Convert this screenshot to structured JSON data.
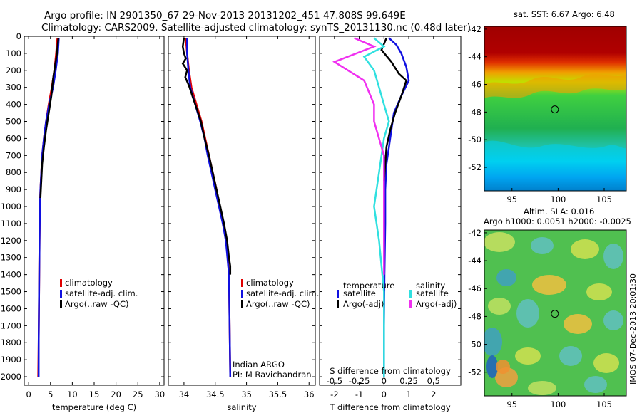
{
  "header": {
    "title_line1": "Argo profile: IN 2901350_67 29-Nov-2013 20131202_451 47.808S 99.649E",
    "title_line2": "Climatology: CARS2009. Satellite-adjusted climatology: synTS_20131130.nc (0.48d later)"
  },
  "side_note": "IMOS 07-Dec-2013 20:01:30",
  "colors": {
    "climatology": "#e00000",
    "satellite": "#1010e0",
    "argo": "#000000",
    "satellite_salinity": "#30e0e0",
    "argo_salinity_diff": "#f030f0"
  },
  "chart_data": [
    {
      "type": "line",
      "panel": "temperature",
      "xlabel": "temperature (deg C)",
      "ylabel": "",
      "xlim": [
        -1,
        31
      ],
      "ylim": [
        2050,
        0
      ],
      "xticks": [
        "0",
        "5",
        "10",
        "15",
        "20",
        "25",
        "30"
      ],
      "yticks": [
        "0",
        "100",
        "200",
        "300",
        "400",
        "500",
        "600",
        "700",
        "800",
        "900",
        "1000",
        "1100",
        "1200",
        "1300",
        "1400",
        "1500",
        "1600",
        "1700",
        "1800",
        "1900",
        "2000"
      ],
      "legend": [
        "climatology",
        "satellite-adj. clim.",
        "Argo(..raw -QC)"
      ],
      "series": [
        {
          "name": "climatology",
          "x": [
            6.6,
            6.3,
            5.9,
            5.3,
            4.6,
            4.0,
            3.5,
            3.1,
            2.9,
            2.7,
            2.6,
            2.5,
            2.4,
            2.3,
            2.2
          ],
          "y": [
            10,
            100,
            200,
            300,
            400,
            500,
            600,
            700,
            800,
            900,
            1000,
            1200,
            1500,
            1800,
            2000
          ]
        },
        {
          "name": "satellite-adj. clim.",
          "x": [
            6.9,
            6.7,
            6.2,
            5.6,
            4.7,
            4.0,
            3.5,
            3.1,
            2.9,
            2.7,
            2.6,
            2.5,
            2.4,
            2.3,
            2.3
          ],
          "y": [
            10,
            100,
            200,
            300,
            400,
            500,
            600,
            700,
            800,
            900,
            1000,
            1200,
            1500,
            1800,
            2000
          ]
        },
        {
          "name": "Argo(..raw -QC)",
          "x": [
            6.8,
            6.5,
            6.0,
            5.6,
            5.2,
            4.6,
            4.0,
            3.5,
            3.1,
            2.9,
            2.7
          ],
          "y": [
            10,
            100,
            180,
            250,
            350,
            450,
            550,
            650,
            750,
            850,
            950
          ]
        }
      ]
    },
    {
      "type": "line",
      "panel": "salinity",
      "xlabel": "salinity",
      "xlim": [
        33.75,
        36.1
      ],
      "ylim": [
        2050,
        0
      ],
      "xticks": [
        "34",
        "34.5",
        "35",
        "35.5",
        "36"
      ],
      "legend": [
        "climatology",
        "satellite-adj. clim.",
        "Argo(..raw -QC)"
      ],
      "annotation": [
        "Indian ARGO",
        "PI: M Ravichandran"
      ],
      "series": [
        {
          "name": "climatology",
          "x": [
            34.03,
            34.05,
            34.08,
            34.12,
            34.2,
            34.28,
            34.34,
            34.4,
            34.46,
            34.52,
            34.57,
            34.63,
            34.68,
            34.72,
            34.73,
            34.74
          ],
          "y": [
            10,
            100,
            200,
            300,
            400,
            500,
            600,
            700,
            800,
            900,
            1000,
            1100,
            1200,
            1400,
            1700,
            2000
          ]
        },
        {
          "name": "satellite-adj. clim.",
          "x": [
            34.05,
            34.05,
            34.07,
            34.1,
            34.18,
            34.26,
            34.33,
            34.38,
            34.44,
            34.5,
            34.56,
            34.62,
            34.67,
            34.72,
            34.73,
            34.74
          ],
          "y": [
            10,
            100,
            200,
            300,
            400,
            500,
            600,
            700,
            800,
            900,
            1000,
            1100,
            1200,
            1400,
            1700,
            2000
          ]
        },
        {
          "name": "Argo(..raw -QC)",
          "x": [
            34.0,
            33.98,
            34.0,
            34.03,
            33.98,
            34.05,
            34.02,
            34.08,
            34.18,
            34.27,
            34.33,
            34.4,
            34.46,
            34.52,
            34.58,
            34.64,
            34.69,
            34.72,
            34.74,
            34.74
          ],
          "y": [
            10,
            60,
            100,
            130,
            160,
            200,
            240,
            290,
            400,
            500,
            600,
            700,
            800,
            900,
            1000,
            1100,
            1200,
            1300,
            1350,
            1400
          ]
        }
      ]
    },
    {
      "type": "line",
      "panel": "difference",
      "xlabel": "T difference from climatology",
      "xlabel2": "S difference from climatology",
      "xlim": [
        -2.6,
        3.1
      ],
      "ylim": [
        2050,
        0
      ],
      "xticks": [
        "-2",
        "-1",
        "0",
        "1",
        "2"
      ],
      "xticks2": [
        "-0.5",
        "-0.25",
        "0",
        "0.25",
        "0.5"
      ],
      "legend_groups": [
        "temperature",
        "salinity"
      ],
      "legend": [
        "satellite",
        "Argo(-adj)",
        "satellite",
        "Argo(-adj)"
      ],
      "series": [
        {
          "name": "satellite",
          "group": "temperature",
          "x": [
            0.2,
            0.5,
            0.7,
            0.9,
            1.0,
            0.7,
            0.4,
            0.3,
            0.2,
            0.1,
            0.05,
            0.05,
            0.02,
            0.0,
            0.0
          ],
          "y": [
            10,
            50,
            100,
            180,
            260,
            350,
            450,
            550,
            650,
            750,
            900,
            1100,
            1400,
            1700,
            2000
          ]
        },
        {
          "name": "Argo(-adj)",
          "group": "temperature",
          "x": [
            0.1,
            -0.1,
            0.3,
            0.6,
            0.9,
            0.7,
            0.45,
            0.25,
            0.1,
            0.05,
            0.0
          ],
          "y": [
            10,
            80,
            150,
            220,
            260,
            350,
            450,
            550,
            650,
            750,
            850
          ]
        },
        {
          "name": "satellite",
          "group": "salinity",
          "x": [
            -0.1,
            0.0,
            -0.2,
            -0.1,
            -0.05,
            0.0,
            0.05,
            0.0,
            -0.05,
            -0.1,
            -0.05,
            0.0,
            0.0,
            0.0
          ],
          "y": [
            10,
            60,
            120,
            200,
            300,
            400,
            500,
            600,
            800,
            1000,
            1200,
            1500,
            1800,
            2000
          ]
        },
        {
          "name": "Argo(-adj)",
          "group": "salinity",
          "x": [
            -0.3,
            -0.1,
            -0.5,
            -0.2,
            -0.1,
            -0.1,
            0.0,
            0.0,
            0.0,
            0.0
          ],
          "y": [
            10,
            60,
            150,
            260,
            400,
            500,
            700,
            900,
            1100,
            1400
          ]
        }
      ]
    },
    {
      "type": "heatmap",
      "panel": "sst_map",
      "title": "sat. SST: 6.67 Argo: 6.48",
      "xlim": [
        92,
        107.4
      ],
      "ylim": [
        -53.7,
        -41.8
      ],
      "xticks": [
        "95",
        "100",
        "105"
      ],
      "yticks": [
        "-42",
        "-44",
        "-46",
        "-48",
        "-50",
        "-52"
      ],
      "marker": {
        "lon": 99.649,
        "lat": -47.808
      }
    },
    {
      "type": "heatmap",
      "panel": "sla_map",
      "title_line1": "Altim. SLA: 0.016",
      "title_line2": "Argo h1000: 0.0051 h2000: -0.0025",
      "xlim": [
        92,
        107.4
      ],
      "ylim": [
        -53.7,
        -41.8
      ],
      "xticks": [
        "95",
        "100",
        "105"
      ],
      "yticks": [
        "-42",
        "-44",
        "-46",
        "-48",
        "-50",
        "-52"
      ],
      "marker": {
        "lon": 99.649,
        "lat": -47.808
      }
    }
  ]
}
